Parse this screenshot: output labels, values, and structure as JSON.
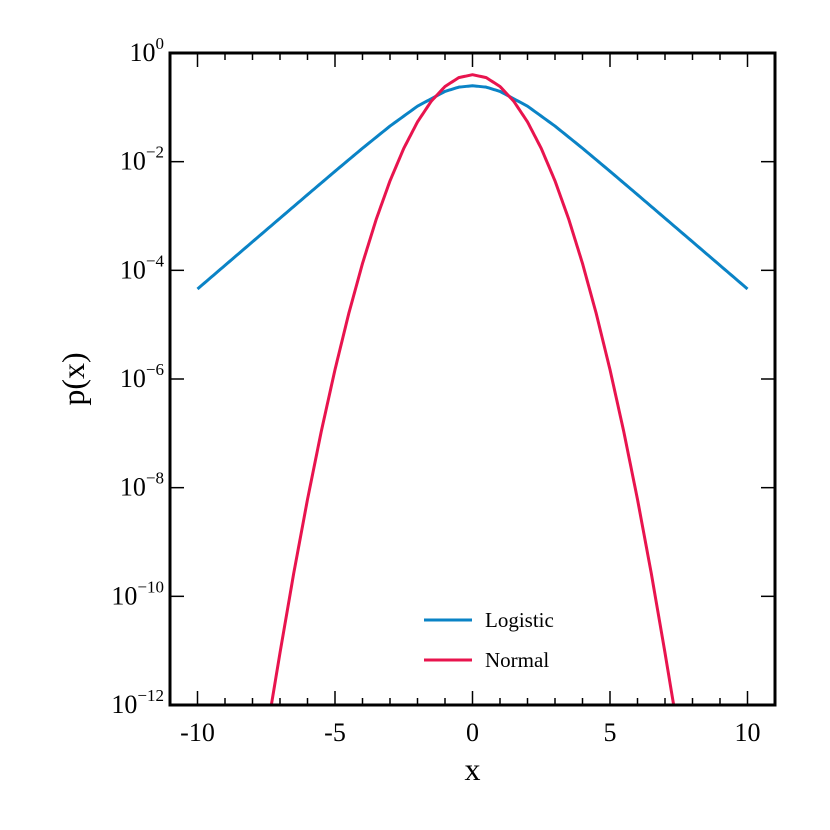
{
  "chart_data": {
    "type": "line",
    "xlabel": "x",
    "ylabel": "p(x)",
    "title": "",
    "xlim": [
      -11,
      11
    ],
    "ylim": [
      1e-12,
      1
    ],
    "yscale": "log",
    "grid": false,
    "legend_position": "lower-center",
    "x_ticks": [
      {
        "value": -10,
        "label": "-10"
      },
      {
        "value": -5,
        "label": "-5"
      },
      {
        "value": 0,
        "label": "0"
      },
      {
        "value": 5,
        "label": "5"
      },
      {
        "value": 10,
        "label": "10"
      }
    ],
    "y_ticks": [
      {
        "value": 1e-12,
        "base": "10",
        "exp": "−12"
      },
      {
        "value": 1e-10,
        "base": "10",
        "exp": "−10"
      },
      {
        "value": 1e-08,
        "base": "10",
        "exp": "−8"
      },
      {
        "value": 1e-06,
        "base": "10",
        "exp": "−6"
      },
      {
        "value": 0.0001,
        "base": "10",
        "exp": "−4"
      },
      {
        "value": 0.01,
        "base": "10",
        "exp": "−2"
      },
      {
        "value": 1,
        "base": "10",
        "exp": "0"
      }
    ],
    "series": [
      {
        "name": "Logistic",
        "color": "#0a83c6",
        "x": [
          -10,
          -9,
          -8,
          -7,
          -6,
          -5,
          -4,
          -3,
          -2,
          -1,
          -0.5,
          0,
          0.5,
          1,
          2,
          3,
          4,
          5,
          6,
          7,
          8,
          9,
          10
        ],
        "y": [
          4.54e-05,
          0.0001234,
          0.0003353,
          0.00091,
          0.002467,
          0.006648,
          0.01766,
          0.04518,
          0.105,
          0.1966,
          0.235,
          0.25,
          0.235,
          0.1966,
          0.105,
          0.04518,
          0.01766,
          0.006648,
          0.002467,
          0.00091,
          0.0003353,
          0.0001234,
          4.54e-05
        ]
      },
      {
        "name": "Normal",
        "color": "#e8144e",
        "x": [
          -7.4,
          -7,
          -6.5,
          -6,
          -5.5,
          -5,
          -4.5,
          -4,
          -3.5,
          -3,
          -2.5,
          -2,
          -1.5,
          -1,
          -0.5,
          0,
          0.5,
          1,
          1.5,
          2,
          2.5,
          3,
          3.5,
          4,
          4.5,
          5,
          5.5,
          6,
          6.5,
          7,
          7.4
        ],
        "y": [
          5.5e-13,
          9.13e-12,
          2.67e-10,
          6.08e-09,
          1.08e-07,
          1.487e-06,
          1.6e-05,
          0.0001338,
          0.0008727,
          0.004432,
          0.01753,
          0.05399,
          0.1295,
          0.242,
          0.3521,
          0.3989,
          0.3521,
          0.242,
          0.1295,
          0.05399,
          0.01753,
          0.004432,
          0.0008727,
          0.0001338,
          1.6e-05,
          1.487e-06,
          1.08e-07,
          6.08e-09,
          2.67e-10,
          9.13e-12,
          5.5e-13
        ]
      }
    ]
  }
}
